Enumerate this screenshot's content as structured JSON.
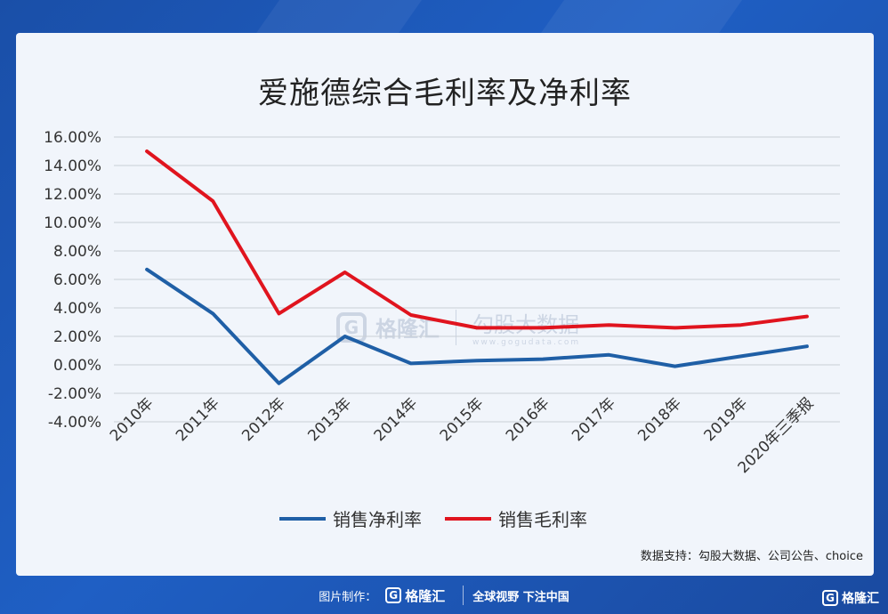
{
  "chart_data": {
    "type": "line",
    "title": "爱施德综合毛利率及净利率",
    "categories": [
      "2010年",
      "2011年",
      "2012年",
      "2013年",
      "2014年",
      "2015年",
      "2016年",
      "2017年",
      "2018年",
      "2019年",
      "2020年三季报"
    ],
    "series": [
      {
        "name": "销售净利率",
        "color": "#1f5fa6",
        "values": [
          6.7,
          3.6,
          -1.3,
          2.0,
          0.1,
          0.3,
          0.4,
          0.7,
          -0.1,
          0.6,
          1.3
        ]
      },
      {
        "name": "销售毛利率",
        "color": "#e0141e",
        "values": [
          15.0,
          11.5,
          3.6,
          6.5,
          3.5,
          2.6,
          2.6,
          2.8,
          2.6,
          2.8,
          3.4
        ]
      }
    ],
    "yticks": [
      "16.00%",
      "14.00%",
      "12.00%",
      "10.00%",
      "8.00%",
      "6.00%",
      "4.00%",
      "2.00%",
      "0.00%",
      "-2.00%",
      "-4.00%"
    ],
    "ylim": [
      -4,
      16
    ],
    "grid": true,
    "legend": "bottom"
  },
  "source": "数据支持：勾股大数据、公司公告、choice",
  "watermark": {
    "brand": "格隆汇",
    "cn": "勾股大数据",
    "url": "www.gogudata.com"
  },
  "footer": {
    "made_by": "图片制作：",
    "brand": "格隆汇",
    "slogan": "全球视野 下注中国",
    "corner": "格隆汇"
  }
}
